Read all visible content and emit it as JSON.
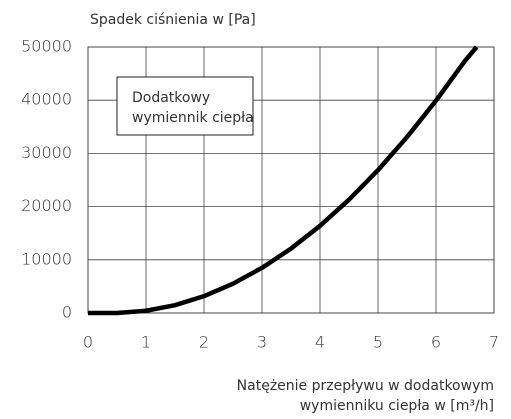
{
  "chart_data": {
    "type": "line",
    "y_label": "Spadek ciśnienia w [Pa]",
    "x_label": [
      "Natężenie przepływu w dodatkowym",
      "wymienniku ciepła w [m³/h]"
    ],
    "annotation": [
      "Dodatkowy",
      "wymiennik ciepła"
    ],
    "x": [
      0,
      0.5,
      1,
      1.5,
      2,
      2.5,
      3,
      3.5,
      4,
      4.5,
      5,
      5.5,
      6,
      6.5,
      6.7
    ],
    "series": [
      {
        "name": "Dodatkowy wymiennik ciepła",
        "color": "#000000",
        "values": [
          0,
          0,
          420,
          1470,
          3170,
          5510,
          8490,
          12110,
          16390,
          21300,
          26860,
          33070,
          39920,
          47400,
          50000
        ]
      }
    ],
    "xlim": [
      0,
      7
    ],
    "xticks": [
      0,
      1,
      2,
      3,
      4,
      5,
      6,
      7
    ],
    "ylim": [
      0,
      50000
    ],
    "yticks": [
      0,
      10000,
      20000,
      30000,
      40000,
      50000
    ],
    "grid": true
  }
}
